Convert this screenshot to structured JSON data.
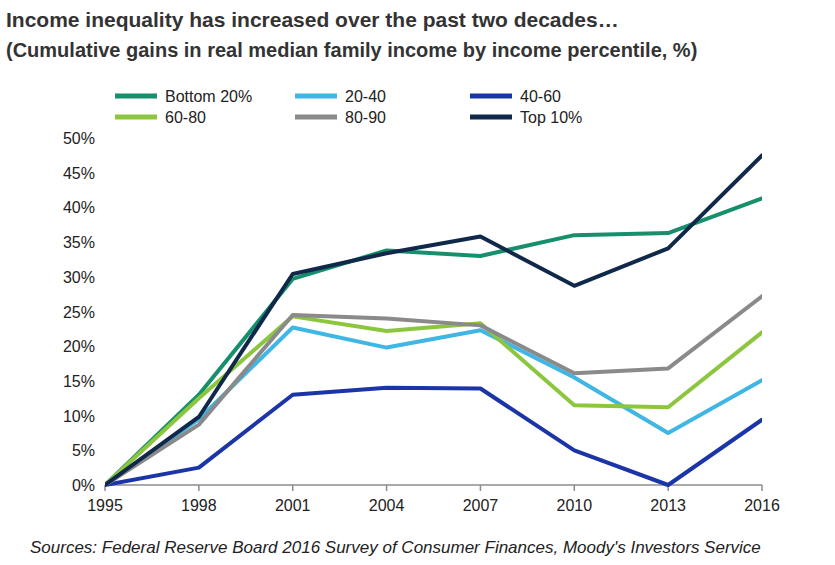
{
  "chart_data": {
    "type": "line",
    "title": "Income inequality has increased over the past two decades…",
    "subtitle": "(Cumulative gains in real median family income by income percentile, %)",
    "source": "Sources: Federal Reserve Board 2016 Survey of Consumer Finances, Moody's Investors Service",
    "x": [
      1995,
      1998,
      2001,
      2004,
      2007,
      2010,
      2013,
      2016
    ],
    "xlim": [
      1995,
      2016
    ],
    "xticks": [
      1995,
      1998,
      2001,
      2004,
      2007,
      2010,
      2013,
      2016
    ],
    "ylim": [
      0,
      50
    ],
    "yticks": [
      {
        "value": 0,
        "label": "0%"
      },
      {
        "value": 5,
        "label": "5%"
      },
      {
        "value": 10,
        "label": "10%"
      },
      {
        "value": 15,
        "label": "15%"
      },
      {
        "value": 20,
        "label": "20%"
      },
      {
        "value": 25,
        "label": "25%"
      },
      {
        "value": 30,
        "label": "30%"
      },
      {
        "value": 35,
        "label": "35%"
      },
      {
        "value": 40,
        "label": "40%"
      },
      {
        "value": 45,
        "label": "45%"
      },
      {
        "value": 50,
        "label": "50%"
      }
    ],
    "grid": false,
    "legend": "top",
    "series": [
      {
        "name": "Bottom 20%",
        "color": "#16906c",
        "values": [
          0,
          13,
          29.7,
          33.8,
          33,
          36,
          36.3,
          41.3
        ]
      },
      {
        "name": "20-40",
        "color": "#3fb6e4",
        "values": [
          0,
          9.5,
          22.7,
          19.8,
          22.3,
          15.5,
          7.5,
          15.1
        ]
      },
      {
        "name": "40-60",
        "color": "#1b35a8",
        "values": [
          0,
          2.5,
          13,
          14,
          13.9,
          5,
          0,
          9.4
        ]
      },
      {
        "name": "60-80",
        "color": "#8cc63f",
        "values": [
          0,
          12.5,
          24.3,
          22.2,
          23.3,
          11.5,
          11.2,
          22
        ]
      },
      {
        "name": "80-90",
        "color": "#8a8a8a",
        "values": [
          0,
          8.7,
          24.5,
          24,
          23,
          16.1,
          16.8,
          27.2
        ]
      },
      {
        "name": "Top 10%",
        "color": "#10294a",
        "values": [
          0,
          9.8,
          30.4,
          33.4,
          35.8,
          28.7,
          34.1,
          47.5
        ]
      }
    ]
  }
}
